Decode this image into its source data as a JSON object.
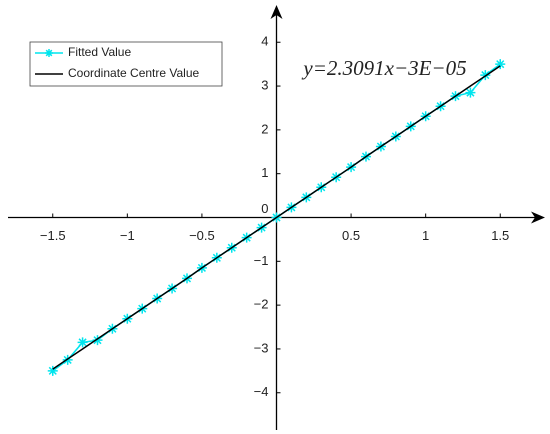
{
  "chart_data": {
    "type": "line",
    "annotation": "y=2.3091x−3E−05",
    "x": [
      -1.5,
      -1.4,
      -1.3,
      -1.2,
      -1.1,
      -1.0,
      -0.9,
      -0.8,
      -0.7,
      -0.6,
      -0.5,
      -0.4,
      -0.3,
      -0.2,
      -0.1,
      0,
      0.1,
      0.2,
      0.3,
      0.4,
      0.5,
      0.6,
      0.7,
      0.8,
      0.9,
      1.0,
      1.1,
      1.2,
      1.3,
      1.4,
      1.5
    ],
    "series": [
      {
        "name": "Fitted Value",
        "color": "#00e5ee",
        "marker": "star",
        "values": [
          -3.5,
          -3.25,
          -2.85,
          -2.8,
          -2.54,
          -2.31,
          -2.08,
          -1.85,
          -1.62,
          -1.39,
          -1.15,
          -0.92,
          -0.69,
          -0.46,
          -0.23,
          0,
          0.23,
          0.46,
          0.69,
          0.92,
          1.15,
          1.39,
          1.62,
          1.85,
          2.08,
          2.31,
          2.54,
          2.77,
          2.85,
          3.25,
          3.5
        ]
      },
      {
        "name": "Coordinate Centre Value",
        "color": "#000000",
        "values": [
          -3.46,
          -3.23,
          -3.0,
          -2.77,
          -2.54,
          -2.31,
          -2.08,
          -1.85,
          -1.62,
          -1.39,
          -1.15,
          -0.92,
          -0.69,
          -0.46,
          -0.23,
          0,
          0.23,
          0.46,
          0.69,
          0.92,
          1.15,
          1.39,
          1.62,
          1.85,
          2.08,
          2.31,
          2.54,
          2.77,
          3.0,
          3.23,
          3.46
        ]
      }
    ],
    "xlim": [
      -1.8,
      1.8
    ],
    "ylim": [
      -4.85,
      4.85
    ],
    "xticks": [
      {
        "value": -1.5,
        "label": "−1.5"
      },
      {
        "value": -1,
        "label": "−1"
      },
      {
        "value": -0.5,
        "label": "−0.5"
      },
      0.5,
      1,
      1.5
    ],
    "yticks": [
      {
        "value": -4,
        "label": "−4"
      },
      {
        "value": -3,
        "label": "−3"
      },
      {
        "value": -2,
        "label": "−2"
      },
      {
        "value": -1,
        "label": "−1"
      },
      0,
      1,
      2,
      3,
      4
    ],
    "grid": false,
    "legend": "upper left"
  }
}
